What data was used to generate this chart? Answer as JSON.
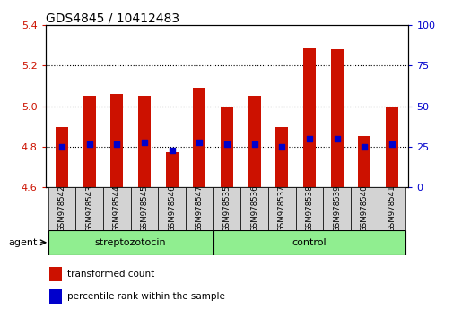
{
  "title": "GDS4845 / 10412483",
  "samples": [
    "GSM978542",
    "GSM978543",
    "GSM978544",
    "GSM978545",
    "GSM978546",
    "GSM978547",
    "GSM978535",
    "GSM978536",
    "GSM978537",
    "GSM978538",
    "GSM978539",
    "GSM978540",
    "GSM978541"
  ],
  "red_values": [
    4.895,
    5.052,
    5.062,
    5.052,
    4.772,
    5.09,
    5.0,
    5.052,
    4.895,
    5.285,
    5.282,
    4.852,
    5.0
  ],
  "blue_values": [
    4.8,
    4.812,
    4.812,
    4.82,
    4.78,
    4.82,
    4.81,
    4.81,
    4.8,
    4.84,
    4.84,
    4.8,
    4.81
  ],
  "ylim_left": [
    4.6,
    5.4
  ],
  "ylim_right": [
    0,
    100
  ],
  "yticks_left": [
    4.6,
    4.8,
    5.0,
    5.2,
    5.4
  ],
  "yticks_right": [
    0,
    25,
    50,
    75,
    100
  ],
  "group1_label": "streptozotocin",
  "group1_count": 6,
  "group2_label": "control",
  "group2_count": 7,
  "group_color": "#90ee90",
  "bar_color": "#cc1100",
  "dot_color": "#0000cc",
  "bar_width": 0.45,
  "agent_label": "agent",
  "legend1": "transformed count",
  "legend2": "percentile rank within the sample",
  "tick_color_left": "#cc1100",
  "tick_color_right": "#0000cc",
  "grid_yticks": [
    4.8,
    5.0,
    5.2
  ]
}
